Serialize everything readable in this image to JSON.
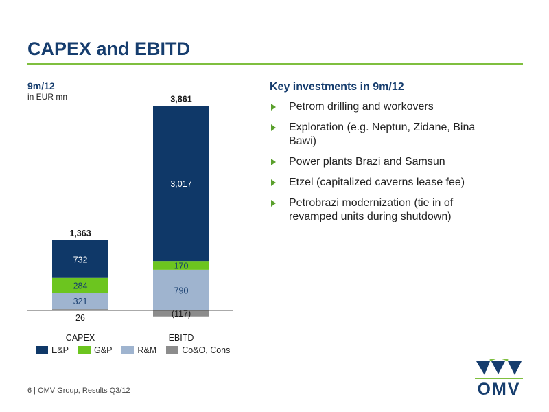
{
  "title": "CAPEX and EBITD",
  "chart_header": {
    "period": "9m/12",
    "unit": "in EUR mn"
  },
  "colors": {
    "E&P": "#0f3868",
    "G&P": "#6cc51f",
    "R&M": "#9fb4cf",
    "Co&O, Cons": "#8c8c8c",
    "accent": "#7fbf3f"
  },
  "chart_data": {
    "type": "bar",
    "stacked": true,
    "categories": [
      "CAPEX",
      "EBITD"
    ],
    "totals": [
      "1,363",
      "3,861"
    ],
    "ylim": [
      -200,
      4000
    ],
    "series": [
      {
        "name": "Co&O, Cons",
        "values": [
          26,
          -117
        ],
        "labels": [
          "26",
          "(117)"
        ]
      },
      {
        "name": "R&M",
        "values": [
          321,
          790
        ],
        "labels": [
          "321",
          "790"
        ]
      },
      {
        "name": "G&P",
        "values": [
          284,
          170
        ],
        "labels": [
          "284",
          "170"
        ]
      },
      {
        "name": "E&P",
        "values": [
          732,
          3017
        ],
        "labels": [
          "732",
          "3,017"
        ]
      }
    ],
    "legend": [
      "E&P",
      "G&P",
      "R&M",
      "Co&O, Cons"
    ],
    "legend_position": "bottom"
  },
  "key_investments": {
    "heading": "Key investments in 9m/12",
    "items": [
      "Petrom drilling and workovers",
      "Exploration (e.g. Neptun, Zidane, Bina Bawi)",
      "Power plants Brazi and Samsun",
      "Etzel (capitalized caverns lease fee)",
      "Petrobrazi modernization (tie in of revamped units during shutdown)"
    ]
  },
  "footer": "6 | OMV Group, Results Q3/12",
  "logo": {
    "text": "OMV"
  }
}
